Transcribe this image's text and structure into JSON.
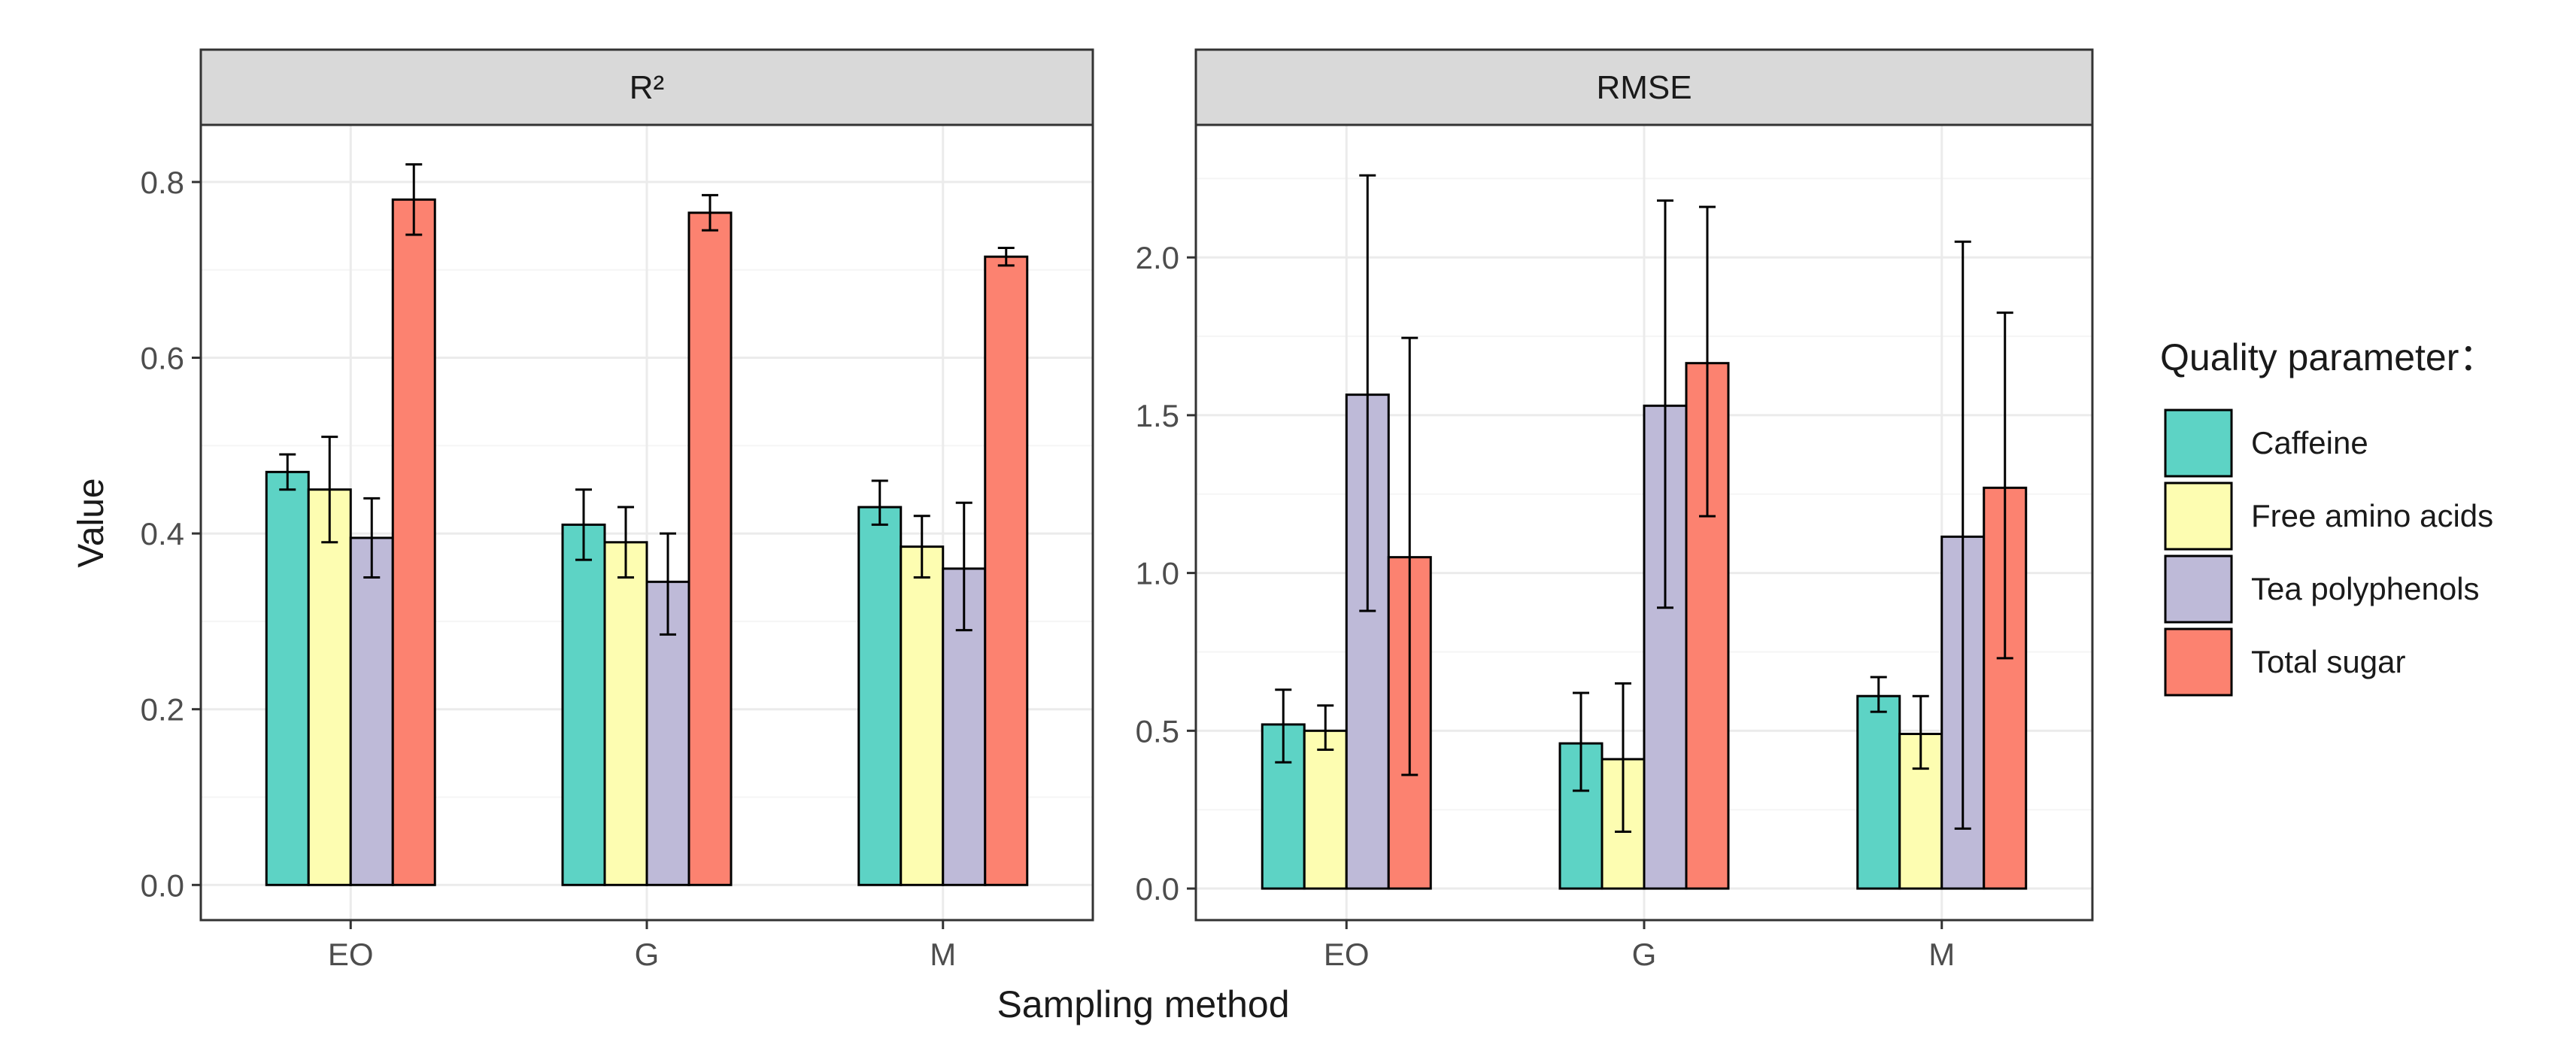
{
  "chart_data": [
    {
      "type": "bar",
      "title": "R²",
      "categories": [
        "EO",
        "G",
        "M"
      ],
      "xlabel": "Sampling method",
      "ylabel": "Value",
      "ylim": [
        -0.04,
        0.865
      ],
      "yticks": [
        0.0,
        0.2,
        0.4,
        0.6,
        0.8
      ],
      "ytick_labels": [
        "0.0",
        "0.2",
        "0.4",
        "0.6",
        "0.8"
      ],
      "grid": true,
      "series": [
        {
          "name": "Caffeine",
          "values": [
            0.47,
            0.41,
            0.43
          ],
          "err_low": [
            0.45,
            0.37,
            0.41
          ],
          "err_high": [
            0.49,
            0.45,
            0.46
          ]
        },
        {
          "name": "Free amino acids",
          "values": [
            0.45,
            0.39,
            0.385
          ],
          "err_low": [
            0.39,
            0.35,
            0.35
          ],
          "err_high": [
            0.51,
            0.43,
            0.42
          ]
        },
        {
          "name": "Tea polyphenols",
          "values": [
            0.395,
            0.345,
            0.36
          ],
          "err_low": [
            0.35,
            0.285,
            0.29
          ],
          "err_high": [
            0.44,
            0.4,
            0.435
          ]
        },
        {
          "name": "Total sugar",
          "values": [
            0.78,
            0.765,
            0.715
          ],
          "err_low": [
            0.74,
            0.745,
            0.705
          ],
          "err_high": [
            0.82,
            0.785,
            0.725
          ]
        }
      ]
    },
    {
      "type": "bar",
      "title": "RMSE",
      "categories": [
        "EO",
        "G",
        "M"
      ],
      "xlabel": "Sampling method",
      "ylabel": "Value",
      "ylim": [
        -0.1,
        2.42
      ],
      "yticks": [
        0.0,
        0.5,
        1.0,
        1.5,
        2.0
      ],
      "ytick_labels": [
        "0.0",
        "0.5",
        "1.0",
        "1.5",
        "2.0"
      ],
      "grid": true,
      "series": [
        {
          "name": "Caffeine",
          "values": [
            0.52,
            0.46,
            0.61
          ],
          "err_low": [
            0.4,
            0.31,
            0.56
          ],
          "err_high": [
            0.63,
            0.62,
            0.67
          ]
        },
        {
          "name": "Free amino acids",
          "values": [
            0.5,
            0.41,
            0.49
          ],
          "err_low": [
            0.44,
            0.18,
            0.38
          ],
          "err_high": [
            0.58,
            0.65,
            0.61
          ]
        },
        {
          "name": "Tea polyphenols",
          "values": [
            1.565,
            1.53,
            1.115
          ],
          "err_low": [
            0.88,
            0.89,
            0.19
          ],
          "err_high": [
            2.26,
            2.18,
            2.05
          ]
        },
        {
          "name": "Total sugar",
          "values": [
            1.05,
            1.665,
            1.27
          ],
          "err_low": [
            0.36,
            1.18,
            0.73
          ],
          "err_high": [
            1.745,
            2.16,
            1.825
          ]
        }
      ]
    }
  ],
  "legend": {
    "title": "Quality parameter：",
    "items": [
      {
        "label": "Caffeine",
        "color": "#5dd3c5"
      },
      {
        "label": "Free amino acids",
        "color": "#fdfdb1"
      },
      {
        "label": "Tea polyphenols",
        "color": "#bebad8"
      },
      {
        "label": "Total sugar",
        "color": "#fc8270"
      }
    ]
  },
  "colors": {
    "strip_bg": "#d9d9d9",
    "grid_major": "#ebebeb",
    "grid_minor": "#f5f5f5",
    "border": "#333333",
    "tick_text": "#4d4d4d",
    "text": "#1a1a1a"
  }
}
